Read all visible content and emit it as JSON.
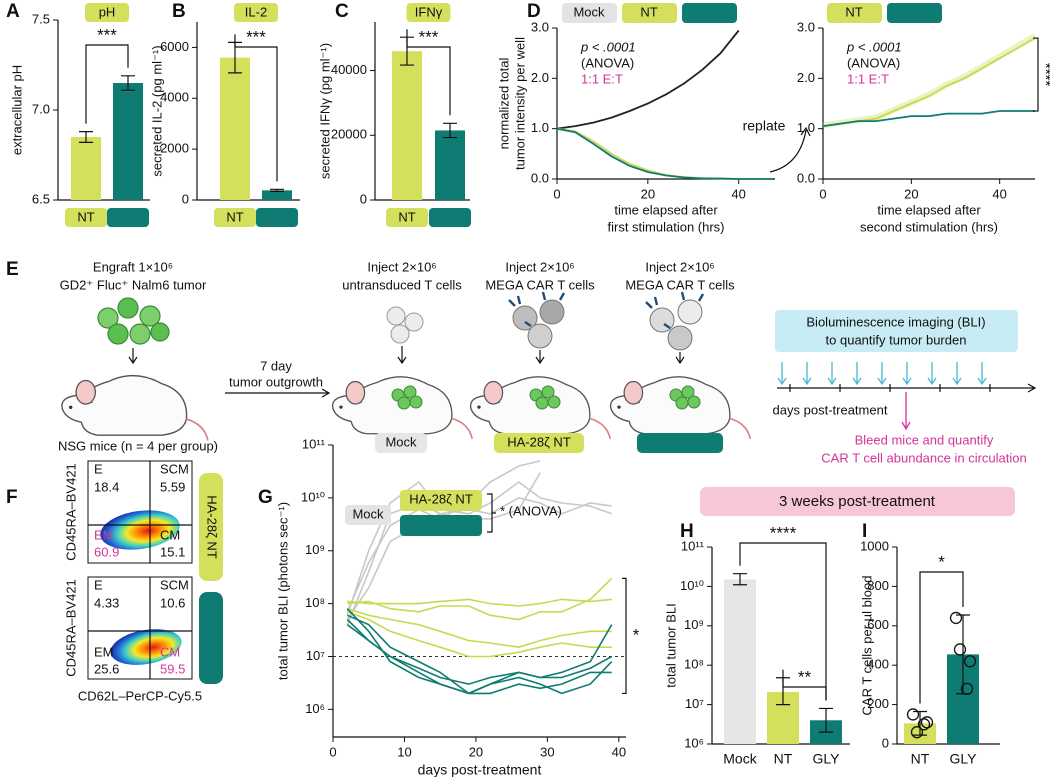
{
  "chart_data": [
    {
      "panel_label": "A",
      "type": "bar",
      "title": "pH",
      "categories": [
        "NT",
        null
      ],
      "colors": [
        "#d4e05c",
        "#0f7c73"
      ],
      "values": [
        6.85,
        7.15
      ],
      "errors": [
        0.03,
        0.04
      ],
      "ylabel": "extracellular pH",
      "ylim": [
        6.5,
        7.5
      ],
      "yticks": [
        6.5,
        {
          "value": 7,
          "label": "7.0"
        },
        7.5
      ],
      "significance": "***"
    },
    {
      "panel_label": "B",
      "type": "bar",
      "title": "IL-2",
      "categories": [
        "NT",
        null
      ],
      "colors": [
        "#d4e05c",
        "#0f7c73"
      ],
      "values": [
        5600,
        380
      ],
      "errors": [
        600,
        40
      ],
      "ylabel": "secreted IL-2 (pg ml⁻¹)",
      "ylim": [
        0,
        7000
      ],
      "yticks": [
        0,
        2000,
        4000,
        6000
      ],
      "significance": "***"
    },
    {
      "panel_label": "C",
      "type": "bar",
      "title": "IFNγ",
      "categories": [
        "NT",
        null
      ],
      "colors": [
        "#d4e05c",
        "#0f7c73"
      ],
      "values": [
        46000,
        21500
      ],
      "errors": [
        4300,
        2200
      ],
      "ylabel": "secreted IFNγ (pg ml⁻¹)",
      "ylim": [
        0,
        55000
      ],
      "yticks": [
        0,
        20000,
        40000
      ],
      "significance": "***"
    },
    {
      "panel_label": "D",
      "type": "line",
      "ylabel": [
        "normalized total",
        "tumor intensity per well"
      ],
      "xlabel": [
        "time elapsed after",
        "first stimulation (hrs)"
      ],
      "x": [
        0,
        4,
        8,
        12,
        16,
        20,
        24,
        28,
        32,
        36,
        40,
        44,
        48
      ],
      "series": [
        {
          "name": "Mock",
          "color": "#222222",
          "values": [
            1.0,
            1.05,
            1.12,
            1.22,
            1.35,
            1.5,
            1.68,
            1.9,
            2.17,
            2.5,
            2.95,
            null,
            null
          ]
        },
        {
          "name": "NT",
          "color": "#c9d94f",
          "values": [
            1.0,
            0.95,
            0.75,
            0.5,
            0.3,
            0.17,
            0.08,
            0.04,
            0.02,
            0.01,
            0,
            0,
            0
          ]
        },
        {
          "name": null,
          "color": "#0f7c73",
          "values": [
            1.0,
            0.93,
            0.7,
            0.45,
            0.26,
            0.14,
            0.07,
            0.03,
            0.01,
            0.01,
            0,
            0,
            0
          ]
        }
      ],
      "legend_fill": [
        "#e3e3e3",
        "#d4e05c",
        "#0f7c73"
      ],
      "xlim": [
        0,
        48
      ],
      "xticks": [
        0,
        20,
        40
      ],
      "ylim": [
        0,
        3
      ],
      "yticks": [
        {
          "value": 0,
          "label": "0.0"
        },
        {
          "value": 1,
          "label": "1.0"
        },
        {
          "value": 2,
          "label": "2.0"
        },
        {
          "value": 3,
          "label": "3.0"
        }
      ],
      "annotations": [
        "p < .0001",
        "(ANOVA)",
        "1:1 E:T"
      ],
      "replate": "replate"
    },
    {
      "type": "line",
      "xlabel": [
        "time elapsed after",
        "second stimulation (hrs)"
      ],
      "x": [
        0,
        4,
        8,
        12,
        16,
        20,
        24,
        28,
        32,
        36,
        40,
        44,
        48
      ],
      "series": [
        {
          "name": "NT",
          "color": "#c9d94f",
          "values": [
            1.05,
            1.1,
            1.15,
            1.2,
            1.35,
            1.5,
            1.65,
            1.85,
            2.0,
            2.2,
            2.4,
            2.6,
            2.8
          ]
        },
        {
          "name": null,
          "color": "#0f7c73",
          "values": [
            1.05,
            1.1,
            1.15,
            1.15,
            1.2,
            1.25,
            1.25,
            1.3,
            1.3,
            1.3,
            1.35,
            1.35,
            1.35
          ]
        }
      ],
      "legend_fill": [
        "#d4e05c",
        "#0f7c73"
      ],
      "xlim": [
        0,
        48
      ],
      "xticks": [
        0,
        20,
        40
      ],
      "ylim": [
        0,
        3
      ],
      "yticks": [
        {
          "value": 0,
          "label": "0.0"
        },
        {
          "value": 1,
          "label": "1.0"
        },
        {
          "value": 2,
          "label": "2.0"
        },
        {
          "value": 3,
          "label": "3.0"
        }
      ],
      "annotations": [
        "p < .0001",
        "(ANOVA)",
        "1:1 E:T"
      ],
      "significance": "****"
    },
    {
      "panel_label": "G",
      "type": "spaghetti",
      "log_scale": true,
      "ylabel": "total tumor BLI (photons sec⁻¹)",
      "xlabel": "days post-treatment",
      "x": [
        2,
        5,
        8,
        12,
        15,
        19,
        22,
        26,
        29,
        32,
        36,
        39
      ],
      "groups": [
        {
          "name": "Mock",
          "color": "#c8c8c8",
          "fill": "#e3e3e3",
          "series": [
            [
              50000000.0,
              200000000.0,
              1500000000.0,
              3000000000.0,
              5000000000.0,
              4000000000.0,
              4000000000.0,
              6000000000.0,
              30000000000.0,
              null,
              null,
              null
            ],
            [
              70000000.0,
              600000000.0,
              3000000000.0,
              6000000000.0,
              4000000000.0,
              8000000000.0,
              20000000000.0,
              40000000000.0,
              50000000000.0,
              null,
              null,
              null
            ],
            [
              40000000.0,
              400000000.0,
              5000000000.0,
              8000000000.0,
              5000000000.0,
              6000000000.0,
              5000000000.0,
              10000000000.0,
              8000000000.0,
              5000000000.0,
              8000000000.0,
              7000000000.0
            ],
            [
              60000000.0,
              1000000000.0,
              8000000000.0,
              20000000000.0,
              6000000000.0,
              5000000000.0,
              8000000000.0,
              20000000000.0,
              10000000000.0,
              8000000000.0,
              7000000000.0,
              5000000000.0
            ]
          ]
        },
        {
          "name": "HA-28ζ  NT",
          "color": "#c9d94f",
          "fill": "#d4e05c",
          "series": [
            [
              100000000.0,
              110000000.0,
              80000000.0,
              70000000.0,
              90000000.0,
              90000000.0,
              60000000.0,
              50000000.0,
              70000000.0,
              70000000.0,
              120000000.0,
              300000000.0
            ],
            [
              110000000.0,
              100000000.0,
              100000000.0,
              100000000.0,
              110000000.0,
              120000000.0,
              100000000.0,
              90000000.0,
              100000000.0,
              120000000.0,
              110000000.0,
              120000000.0
            ],
            [
              80000000.0,
              60000000.0,
              50000000.0,
              40000000.0,
              30000000.0,
              20000000.0,
              18000000.0,
              15000000.0,
              20000000.0,
              25000000.0,
              30000000.0,
              30000000.0
            ],
            [
              70000000.0,
              50000000.0,
              30000000.0,
              20000000.0,
              15000000.0,
              10000000.0,
              10000000.0,
              12000000.0,
              15000000.0,
              18000000.0,
              15000000.0,
              15000000.0
            ]
          ]
        },
        {
          "name": null,
          "color": "#0f7c73",
          "fill": "#0f7c73",
          "series": [
            [
              60000000.0,
              40000000.0,
              15000000.0,
              8000000.0,
              5000000.0,
              2000000.0,
              3000000.0,
              5000000.0,
              4000000.0,
              5000000.0,
              8000000.0,
              40000000.0
            ],
            [
              50000000.0,
              20000000.0,
              10000000.0,
              5000000.0,
              3000000.0,
              2000000.0,
              2000000.0,
              3000000.0,
              2500000.0,
              3000000.0,
              5000000.0,
              5000000.0
            ],
            [
              80000000.0,
              30000000.0,
              8000000.0,
              4000000.0,
              3000000.0,
              2000000.0,
              3000000.0,
              4000000.0,
              3000000.0,
              2000000.0,
              3000000.0,
              8000000.0
            ],
            [
              40000000.0,
              20000000.0,
              10000000.0,
              6000000.0,
              4000000.0,
              3000000.0,
              4000000.0,
              5000000.0,
              4000000.0,
              4000000.0,
              6000000.0,
              10000000.0
            ]
          ]
        }
      ],
      "threshold": 10000000.0,
      "legend_note": "* (ANOVA)",
      "significance": "*",
      "xlim": [
        0,
        41
      ],
      "xticks": [
        0,
        10,
        20,
        30,
        40
      ],
      "ylim": [
        300000.0,
        100000000000.0
      ],
      "yticks": [
        {
          "value": 1000000.0,
          "label": "10⁶"
        },
        {
          "value": 10000000.0,
          "label": "10⁷"
        },
        {
          "value": 100000000.0,
          "label": "10⁸"
        },
        {
          "value": 1000000000.0,
          "label": "10⁹"
        },
        {
          "value": 10000000000.0,
          "label": "10¹⁰"
        },
        {
          "value": 100000000000.0,
          "label": "10¹¹"
        }
      ]
    },
    {
      "panel_label": "H",
      "type": "bar",
      "log_scale": true,
      "ylabel": "total tumor BLI",
      "categories": [
        "Mock",
        "NT",
        "GLY"
      ],
      "colors": [
        "#e6e6e6",
        "#d4e05c",
        "#0f7c73"
      ],
      "values": [
        15000000000.0,
        21000000.0,
        4000000.0
      ],
      "error_low": [
        11000000000.0,
        10000000.0,
        2000000.0
      ],
      "error_high": [
        21000000000.0,
        48000000.0,
        8000000.0
      ],
      "ylim": [
        1000000.0,
        100000000000.0
      ],
      "yticks": [
        {
          "value": 1000000.0,
          "label": "10⁶"
        },
        {
          "value": 10000000.0,
          "label": "10⁷"
        },
        {
          "value": 100000000.0,
          "label": "10⁸"
        },
        {
          "value": 1000000000.0,
          "label": "10⁹"
        },
        {
          "value": 10000000000.0,
          "label": "10¹⁰"
        },
        {
          "value": 100000000000.0,
          "label": "10¹¹"
        }
      ],
      "significance": [
        "****",
        "**"
      ]
    },
    {
      "panel_label": "I",
      "type": "bar",
      "ylabel": "CAR T cells per µl blood",
      "categories": [
        "NT",
        "GLY"
      ],
      "colors": [
        "#d4e05c",
        "#0f7c73"
      ],
      "values": [
        105,
        455
      ],
      "errors": [
        60,
        200
      ],
      "points": [
        [
          150,
          110,
          60,
          100
        ],
        [
          640,
          420,
          480,
          280
        ]
      ],
      "ylim": [
        0,
        1000
      ],
      "yticks": [
        0,
        200,
        400,
        600,
        800,
        1000
      ],
      "significance": "*"
    }
  ],
  "banner": "3 weeks post-treatment",
  "schematic": {
    "panel_label": "E",
    "engraft": [
      "Engraft 1×10⁶",
      "GD2⁺ Fluc⁺ Nalm6 tumor"
    ],
    "mice": "NSG mice (n = 4 per group)",
    "outgrowth": [
      "7 day",
      "tumor outgrowth"
    ],
    "injections": [
      {
        "lines": [
          "Inject 2×10⁶",
          "untransduced T cells"
        ],
        "group": "Mock"
      },
      {
        "lines": [
          "Inject 2×10⁶",
          "MEGA CAR T cells"
        ],
        "group": "HA-28ζ  NT"
      },
      {
        "lines": [
          "Inject 2×10⁶",
          "MEGA CAR T cells"
        ]
      }
    ],
    "imaging": [
      "Bioluminescence imaging (BLI)",
      "to quantify tumor burden"
    ],
    "timeline": "days post-treatment",
    "bleed": [
      "Bleed mice and quantify",
      "CAR T cell abundance in circulation"
    ]
  },
  "flow": {
    "panel_label": "F",
    "xlabel": "CD62L–PerCP-Cy5.5",
    "ylabel": "CD45RA–BV421",
    "quadrant_names": [
      "E",
      "SCM",
      "EM",
      "CM"
    ],
    "plots": [
      {
        "group": "HA-28ζ  NT",
        "quadrants": [
          18.4,
          5.59,
          60.9,
          15.1
        ]
      },
      {
        "quadrants": [
          4.33,
          10.6,
          25.6,
          59.5
        ]
      }
    ]
  }
}
